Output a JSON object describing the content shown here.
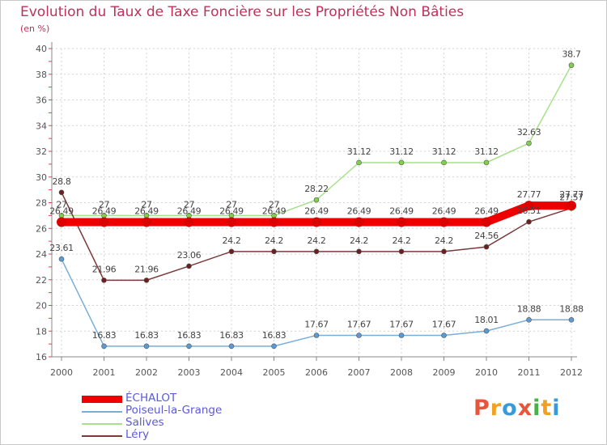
{
  "chart_data": {
    "type": "line",
    "title": "Evolution du Taux de Taxe Foncière sur les Propriétés Non Bâties",
    "subtitle": "(en %)",
    "categories": [
      "2000",
      "2001",
      "2002",
      "2003",
      "2004",
      "2005",
      "2006",
      "2007",
      "2008",
      "2009",
      "2010",
      "2011",
      "2012"
    ],
    "ylim": [
      16,
      40
    ],
    "yticks": [
      16,
      18,
      20,
      22,
      24,
      26,
      28,
      30,
      32,
      34,
      36,
      38,
      40
    ],
    "grid": true,
    "series": [
      {
        "name": "Salives",
        "color": "#a8e08c",
        "marker": "#7fd04a",
        "values": [
          27,
          27,
          27,
          27,
          27,
          27,
          28.22,
          31.12,
          31.12,
          31.12,
          31.12,
          32.63,
          38.7
        ],
        "labels": [
          "27",
          "27",
          "27",
          "27",
          "27",
          "27",
          "28.22",
          "31.12",
          "31.12",
          "31.12",
          "31.12",
          "32.63",
          "38.7"
        ]
      },
      {
        "name": "Poiseul-la-Grange",
        "color": "#7aaed8",
        "marker": "#5b9bd5",
        "values": [
          23.61,
          16.83,
          16.83,
          16.83,
          16.83,
          16.83,
          17.67,
          17.67,
          17.67,
          17.67,
          18.01,
          18.88,
          18.88
        ],
        "labels": [
          "23.61",
          "16.83",
          "16.83",
          "16.83",
          "16.83",
          "16.83",
          "17.67",
          "17.67",
          "17.67",
          "17.67",
          "18.01",
          "18.88",
          "18.88"
        ]
      },
      {
        "name": "Léry",
        "color": "#7a3a3a",
        "marker": "#6b1f1f",
        "values": [
          28.8,
          21.96,
          21.96,
          23.06,
          24.2,
          24.2,
          24.2,
          24.2,
          24.2,
          24.2,
          24.56,
          26.51,
          27.57
        ],
        "labels": [
          "28.8",
          "21.96",
          "21.96",
          "23.06",
          "24.2",
          "24.2",
          "24.2",
          "24.2",
          "24.2",
          "24.2",
          "24.56",
          "26.51",
          "27.57"
        ]
      },
      {
        "name": "ÉCHALOT",
        "color": "#ee0000",
        "marker": "#dd0000",
        "values": [
          26.49,
          26.49,
          26.49,
          26.49,
          26.49,
          26.49,
          26.49,
          26.49,
          26.49,
          26.49,
          26.49,
          27.77,
          27.77
        ],
        "labels": [
          "26.49",
          "26.49",
          "26.49",
          "26.49",
          "26.49",
          "26.49",
          "26.49",
          "26.49",
          "26.49",
          "26.49",
          "26.49",
          "27.77",
          "27.77"
        ]
      }
    ],
    "legend": [
      "ÉCHALOT",
      "Poiseul-la-Grange",
      "Salives",
      "Léry"
    ],
    "legend_position": "bottom-left"
  },
  "brand": {
    "text": "Proxiti",
    "colors": [
      "#e8553a",
      "#f2a020",
      "#3a9ad9",
      "#e8553a",
      "#4ab04a",
      "#f2a020",
      "#3a9ad9"
    ]
  }
}
